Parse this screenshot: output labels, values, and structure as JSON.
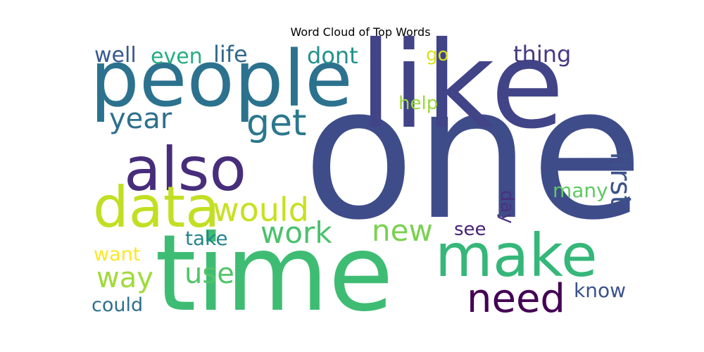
{
  "title": "Word Cloud of Top Words",
  "palette": {
    "one": "#3f4c8a",
    "like": "#414487",
    "time": "#3fbc73",
    "people": "#2c728e",
    "make": "#35b779",
    "also": "#472d7b",
    "data": "#c2df23",
    "get": "#2a788e",
    "need": "#440154",
    "would": "#c8e020",
    "work": "#4ac16d",
    "new": "#7ad151",
    "first": "#3b528b",
    "year": "#2d708e",
    "way": "#a0da39",
    "use": "#52c569",
    "life": "#31688e",
    "dont": "#21918c",
    "thing": "#443983",
    "even": "#26ad81",
    "well": "#38588c",
    "many": "#5ec962",
    "know": "#3b528b",
    "could": "#2e6e8e",
    "take": "#25858e",
    "want": "#fde725",
    "see": "#482173",
    "day": "#46327e",
    "go": "#d8e219",
    "help": "#9bd93c"
  },
  "words": [
    {
      "text": "one",
      "weight": 100
    },
    {
      "text": "like",
      "weight": 83
    },
    {
      "text": "time",
      "weight": 76
    },
    {
      "text": "people",
      "weight": 62
    },
    {
      "text": "make",
      "weight": 52
    },
    {
      "text": "also",
      "weight": 50
    },
    {
      "text": "data",
      "weight": 46
    },
    {
      "text": "get",
      "weight": 34
    },
    {
      "text": "need",
      "weight": 36
    },
    {
      "text": "would",
      "weight": 32
    },
    {
      "text": "work",
      "weight": 30
    },
    {
      "text": "new",
      "weight": 29
    },
    {
      "text": "first",
      "weight": 28
    },
    {
      "text": "year",
      "weight": 27
    },
    {
      "text": "way",
      "weight": 26
    },
    {
      "text": "use",
      "weight": 26
    },
    {
      "text": "life",
      "weight": 22
    },
    {
      "text": "dont",
      "weight": 22
    },
    {
      "text": "thing",
      "weight": 22
    },
    {
      "text": "even",
      "weight": 21
    },
    {
      "text": "well",
      "weight": 20
    },
    {
      "text": "many",
      "weight": 19
    },
    {
      "text": "know",
      "weight": 19
    },
    {
      "text": "could",
      "weight": 19
    },
    {
      "text": "take",
      "weight": 19
    },
    {
      "text": "want",
      "weight": 19
    },
    {
      "text": "see",
      "weight": 18
    },
    {
      "text": "day",
      "weight": 17
    },
    {
      "text": "go",
      "weight": 17
    },
    {
      "text": "help",
      "weight": 17
    }
  ]
}
